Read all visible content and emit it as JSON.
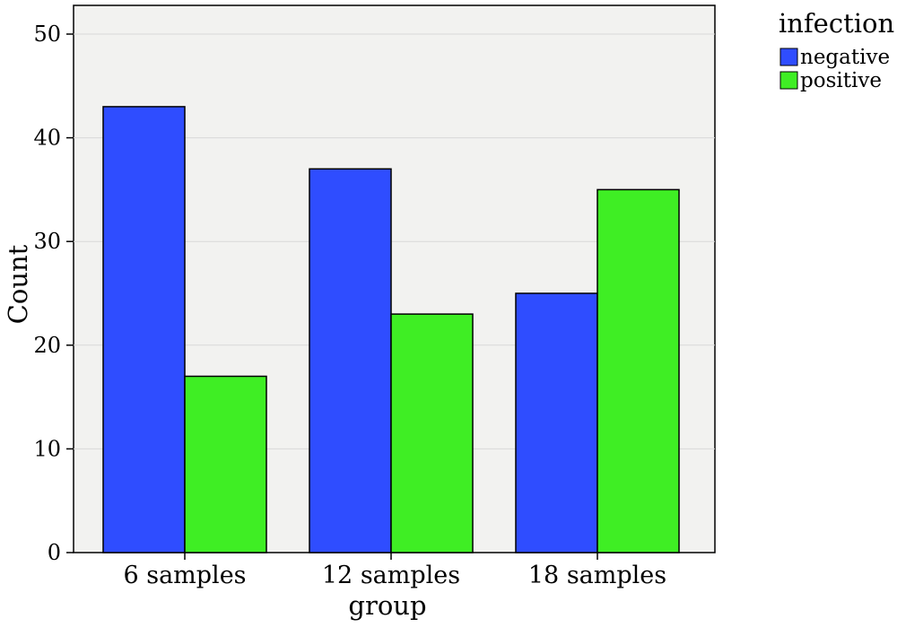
{
  "chart_data": {
    "type": "bar",
    "title": "",
    "xlabel": "group",
    "ylabel": "Count",
    "categories": [
      "6 samples",
      "12 samples",
      "18 samples"
    ],
    "series": [
      {
        "name": "negative",
        "color": "#2f4dff",
        "values": [
          43,
          37,
          25
        ]
      },
      {
        "name": "positive",
        "color": "#3fee24",
        "values": [
          17,
          23,
          35
        ]
      }
    ],
    "ylim": [
      0,
      50
    ],
    "yticks": [
      "0",
      "10",
      "20",
      "30",
      "40",
      "50"
    ],
    "grid": true,
    "legend": {
      "title": "infection",
      "placement": "top-right outside"
    },
    "plot_background": "#f2f2f0"
  }
}
